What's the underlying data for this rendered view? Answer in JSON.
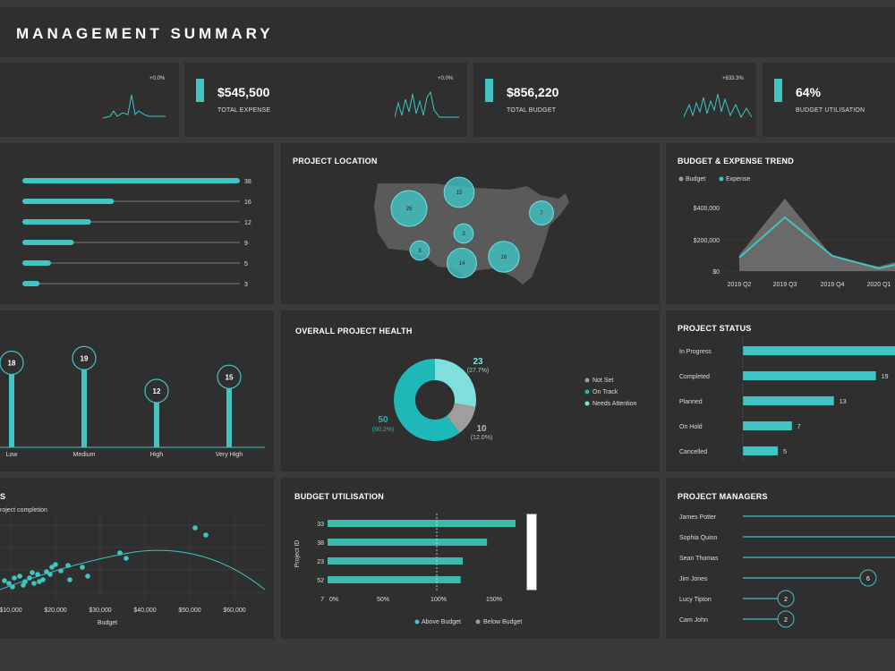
{
  "title": "MANAGEMENT SUMMARY",
  "colors": {
    "accent": "#40c4c4",
    "panel": "#2f2f2f",
    "background": "#3a3a3a"
  },
  "kpis": [
    {
      "value": "",
      "label": "",
      "change": "+0.0%"
    },
    {
      "value": "$545,500",
      "label": "TOTAL EXPENSE",
      "change": "+0.0%"
    },
    {
      "value": "$856,220",
      "label": "TOTAL BUDGET",
      "change": "+833.3%"
    },
    {
      "value": "64%",
      "label": "BUDGET UTILISATION",
      "change": ""
    }
  ],
  "projects_bars": {
    "values": [
      38,
      16,
      12,
      9,
      5,
      3
    ],
    "labels": [
      "38",
      "16",
      "12",
      "9",
      "5",
      "3"
    ]
  },
  "project_location": {
    "title": "PROJECT LOCATION",
    "bubbles": [
      {
        "label": "25",
        "value": 25
      },
      {
        "label": "15",
        "value": 15
      },
      {
        "label": "7",
        "value": 7
      },
      {
        "label": "3",
        "value": 3
      },
      {
        "label": "3",
        "value": 3
      },
      {
        "label": "14",
        "value": 14
      },
      {
        "label": "16",
        "value": 16
      }
    ]
  },
  "trend": {
    "title": "BUDGET & EXPENSE TREND",
    "legend": [
      "Budget",
      "Expense"
    ],
    "y_ticks": [
      "$400,000",
      "$200,000",
      "$0"
    ],
    "x_ticks": [
      "2019 Q2",
      "2019 Q3",
      "2019 Q4",
      "2020 Q1"
    ]
  },
  "priority": {
    "labels": [
      "Low",
      "Medium",
      "High",
      "Very High"
    ],
    "values": [
      "18",
      "19",
      "12",
      "15"
    ]
  },
  "health": {
    "title": "OVERALL PROJECT HEALTH",
    "slices": [
      {
        "name": "Needs Attention",
        "value": 23,
        "pct": "(27.7%)",
        "label": "23"
      },
      {
        "name": "Not Set",
        "value": 10,
        "pct": "(12.0%)",
        "label": "10"
      },
      {
        "name": "On Track",
        "value": 50,
        "pct": "(60.2%)",
        "label": "50"
      }
    ],
    "legend": [
      "Not Set",
      "On Track",
      "Needs Attention"
    ]
  },
  "status": {
    "title": "PROJECT STATUS",
    "items": [
      {
        "label": "In Progress",
        "value": ""
      },
      {
        "label": "Completed",
        "value": "19"
      },
      {
        "label": "Planned",
        "value": "13"
      },
      {
        "label": "On Hold",
        "value": "7"
      },
      {
        "label": "Cancelled",
        "value": "5"
      }
    ]
  },
  "scatter": {
    "title": "S",
    "subtitle": "roject completion",
    "x_ticks": [
      "$10,000",
      "$20,000",
      "$30,000",
      "$40,000",
      "$50,000",
      "$60,000"
    ],
    "xlabel": "Budget"
  },
  "utilisation": {
    "title": "BUDGET UTILISATION",
    "ylabel": "Project ID",
    "rows": [
      "33",
      "38",
      "23",
      "52",
      "7"
    ],
    "x_ticks": [
      "0%",
      "50%",
      "100%",
      "150%"
    ],
    "legend": [
      "Above Budget",
      "Below Budget"
    ]
  },
  "managers": {
    "title": "PROJECT MANAGERS",
    "items": [
      {
        "name": "James Potter",
        "count": ""
      },
      {
        "name": "Sophia Quinn",
        "count": ""
      },
      {
        "name": "Sean Thomas",
        "count": ""
      },
      {
        "name": "Jim Jones",
        "count": "6"
      },
      {
        "name": "Lucy Tipton",
        "count": "2"
      },
      {
        "name": "Cam John",
        "count": "2"
      }
    ]
  }
}
